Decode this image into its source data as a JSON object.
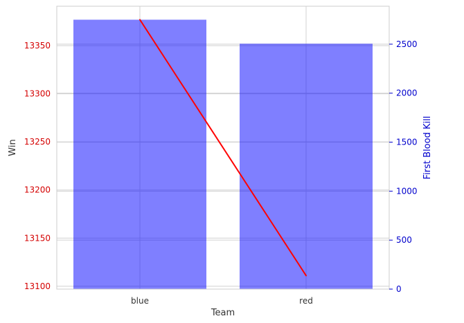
{
  "chart_data": {
    "type": "bar",
    "categories": [
      "blue",
      "red"
    ],
    "xlabel": "Team",
    "series": [
      {
        "name": "Win",
        "type": "line",
        "axis": "left",
        "values": [
          13377,
          13111
        ],
        "color": "#ff0000"
      },
      {
        "name": "First Blood Kill",
        "type": "bar",
        "axis": "right",
        "values": [
          2750,
          2505
        ],
        "color": "#0000ff",
        "alpha": 0.5
      }
    ],
    "y_left": {
      "label": "Win",
      "ylim": [
        13097,
        13391
      ],
      "ticks": [
        13100,
        13150,
        13200,
        13250,
        13300,
        13350
      ],
      "color": "#d40000"
    },
    "y_right": {
      "label": "First Blood Kill",
      "ylim": [
        0,
        2887.5
      ],
      "ticks": [
        0,
        500,
        1000,
        1500,
        2000,
        2500
      ],
      "color": "#0000cc"
    },
    "grid": true,
    "legend": "none"
  }
}
